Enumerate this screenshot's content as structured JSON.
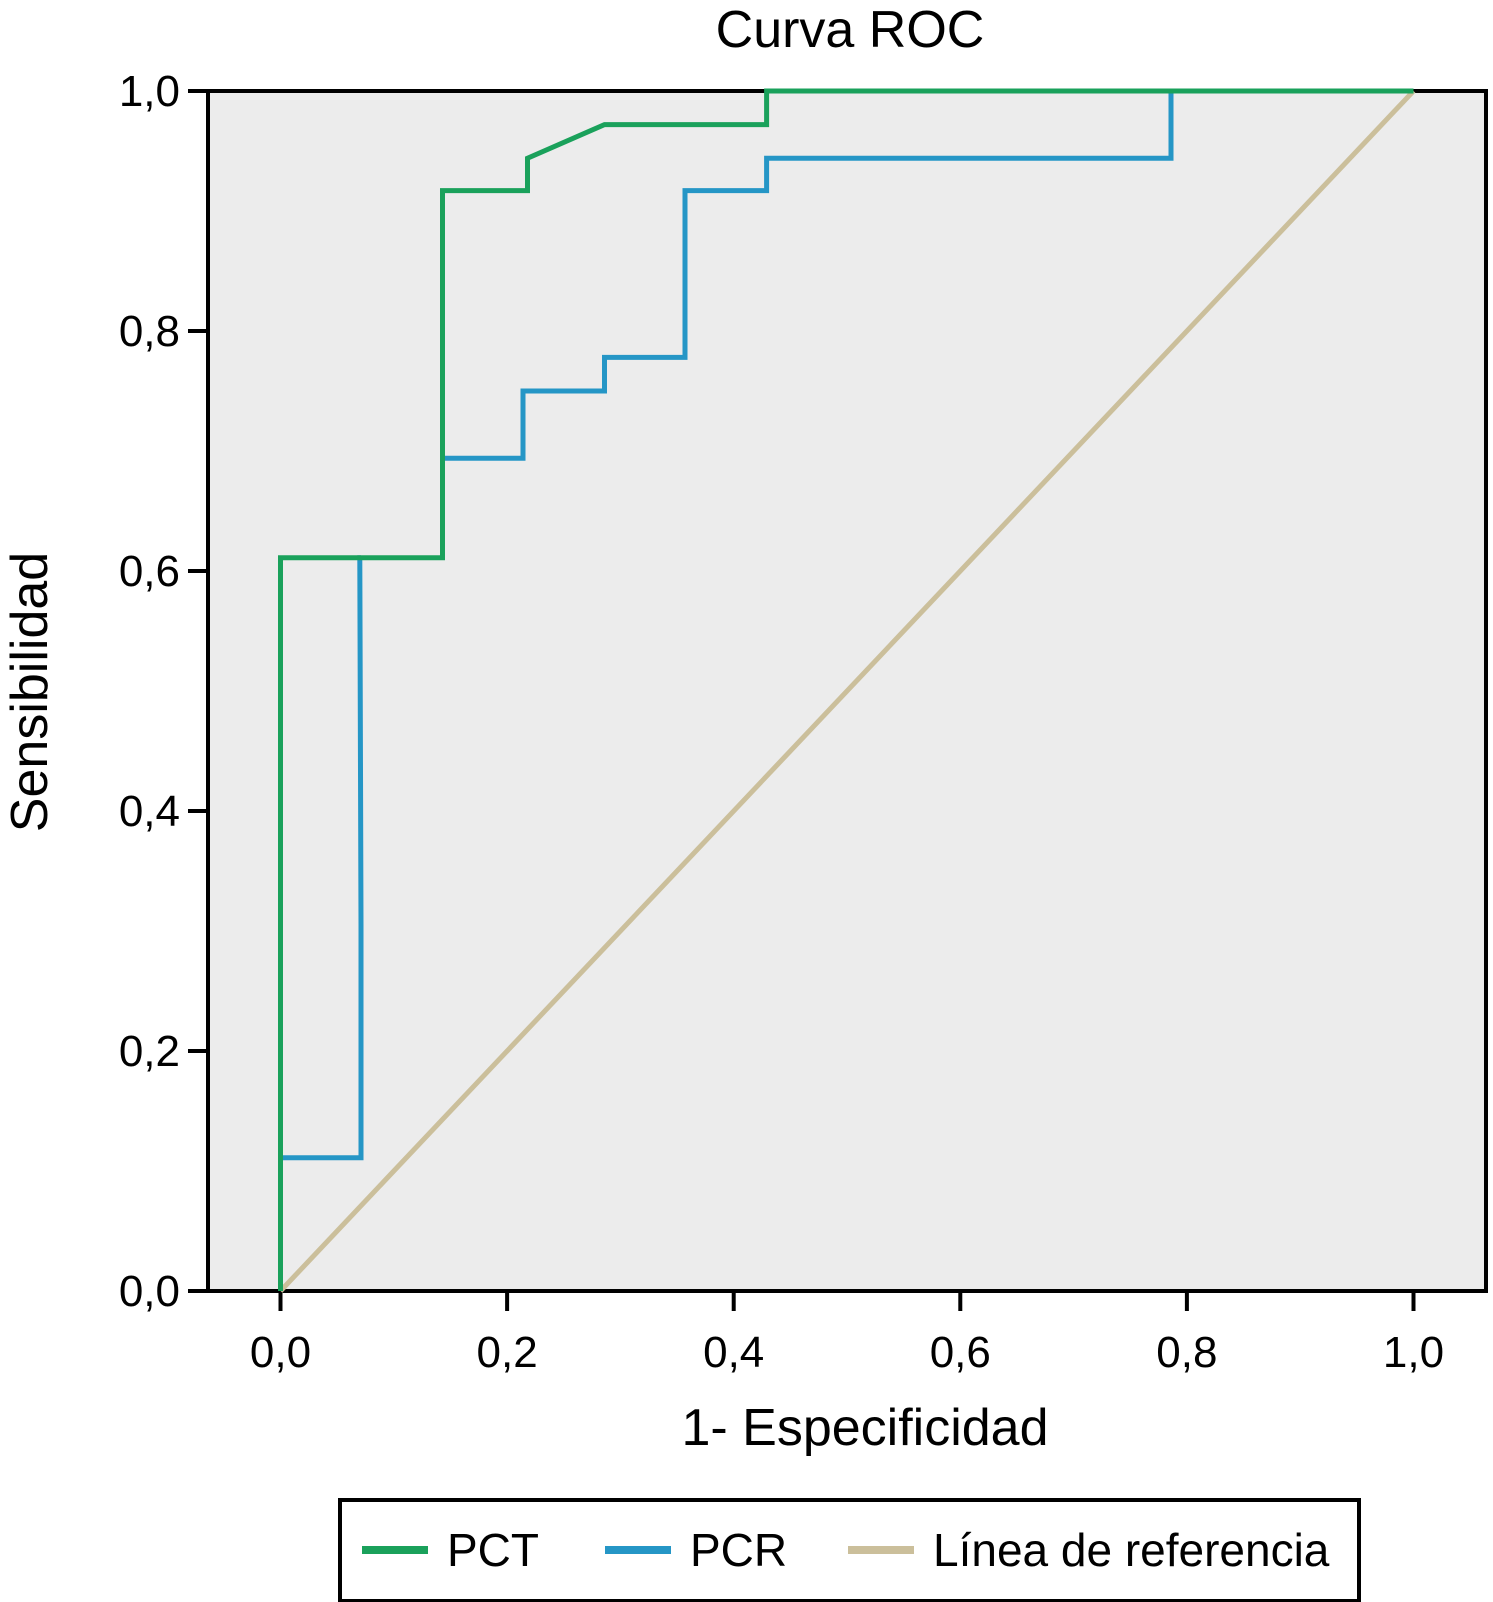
{
  "chart_data": {
    "type": "line",
    "title": "Curva ROC",
    "xlabel": "1- Especificidad",
    "ylabel": "Sensibilidad",
    "xlim": [
      -0.064,
      1.064
    ],
    "ylim": [
      0,
      1
    ],
    "xticks": [
      0,
      0.2,
      0.4,
      0.6,
      0.8,
      1.0
    ],
    "yticks": [
      0,
      0.2,
      0.4,
      0.6,
      0.8,
      1.0
    ],
    "xtick_labels": [
      "0,0",
      "0,2",
      "0,4",
      "0,6",
      "0,8",
      "1,0"
    ],
    "ytick_labels": [
      "0,0",
      "0,2",
      "0,4",
      "0,6",
      "0,8",
      "1,0"
    ],
    "plot_background": "#ececec",
    "grid": false,
    "legend_position": "bottom",
    "series": [
      {
        "name": "PCT",
        "color": "#1aa15b",
        "points": [
          [
            0,
            0
          ],
          [
            0,
            0.611
          ],
          [
            0.143,
            0.611
          ],
          [
            0.143,
            0.917
          ],
          [
            0.218,
            0.917
          ],
          [
            0.218,
            0.944
          ],
          [
            0.286,
            0.972
          ],
          [
            0.429,
            0.972
          ],
          [
            0.429,
            1.0
          ],
          [
            1.0,
            1.0
          ]
        ]
      },
      {
        "name": "PCR",
        "color": "#2596c6",
        "points": [
          [
            0,
            0.111
          ],
          [
            0.071,
            0.111
          ],
          [
            0.071,
            0.305
          ],
          [
            0.07,
            0.611
          ],
          [
            0.071,
            0.611
          ],
          [
            0.071,
            0.611
          ]
        ]
      },
      {
        "name": "PCR",
        "color": "#2596c6",
        "points": [
          [
            0.143,
            0.694
          ],
          [
            0.214,
            0.694
          ],
          [
            0.214,
            0.75
          ],
          [
            0.286,
            0.75
          ],
          [
            0.286,
            0.778
          ],
          [
            0.357,
            0.778
          ],
          [
            0.357,
            0.917
          ],
          [
            0.429,
            0.917
          ],
          [
            0.429,
            0.944
          ],
          [
            0.786,
            0.944
          ],
          [
            0.786,
            1.0
          ],
          [
            1.0,
            1.0
          ]
        ]
      },
      {
        "name": "Línea de referencia",
        "color": "#cbbf9b",
        "points": [
          [
            0,
            0
          ],
          [
            1,
            1
          ]
        ]
      }
    ],
    "legend": [
      {
        "label": "PCT",
        "color": "#1aa15b"
      },
      {
        "label": "PCR",
        "color": "#2596c6"
      },
      {
        "label": "Línea de referencia",
        "color": "#cbbf9b"
      }
    ]
  }
}
